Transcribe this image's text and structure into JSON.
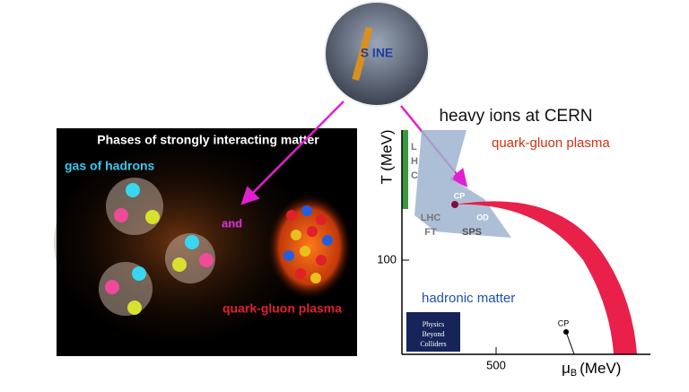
{
  "header": {
    "title": "heavy ions at CERN",
    "logo_text": "S INE"
  },
  "left_panel": {
    "title": "Phases of strongly interacting matter",
    "gas_label": "gas of hadrons",
    "and_label": "and",
    "qgp_label": "quark-gluon plasma"
  },
  "phase_diagram": {
    "region_qgp": "quark-gluon plasma",
    "region_hadronic": "hadronic matter",
    "lhc_letters": [
      "L",
      "H",
      "C"
    ],
    "lhc_ft": [
      "LHC",
      "FT"
    ],
    "sps": "SPS",
    "od": "OD",
    "cp_upper": "CP",
    "cp_lower": "CP",
    "y_axis_label": "T (MeV)",
    "y_tick": 100,
    "x_tick": 500,
    "x_axis_symbol": "μ",
    "x_axis_subscript": "B",
    "x_axis_unit": "(MeV)"
  },
  "pbc_logo": [
    "Physics",
    "Beyond",
    "Colliders"
  ]
}
